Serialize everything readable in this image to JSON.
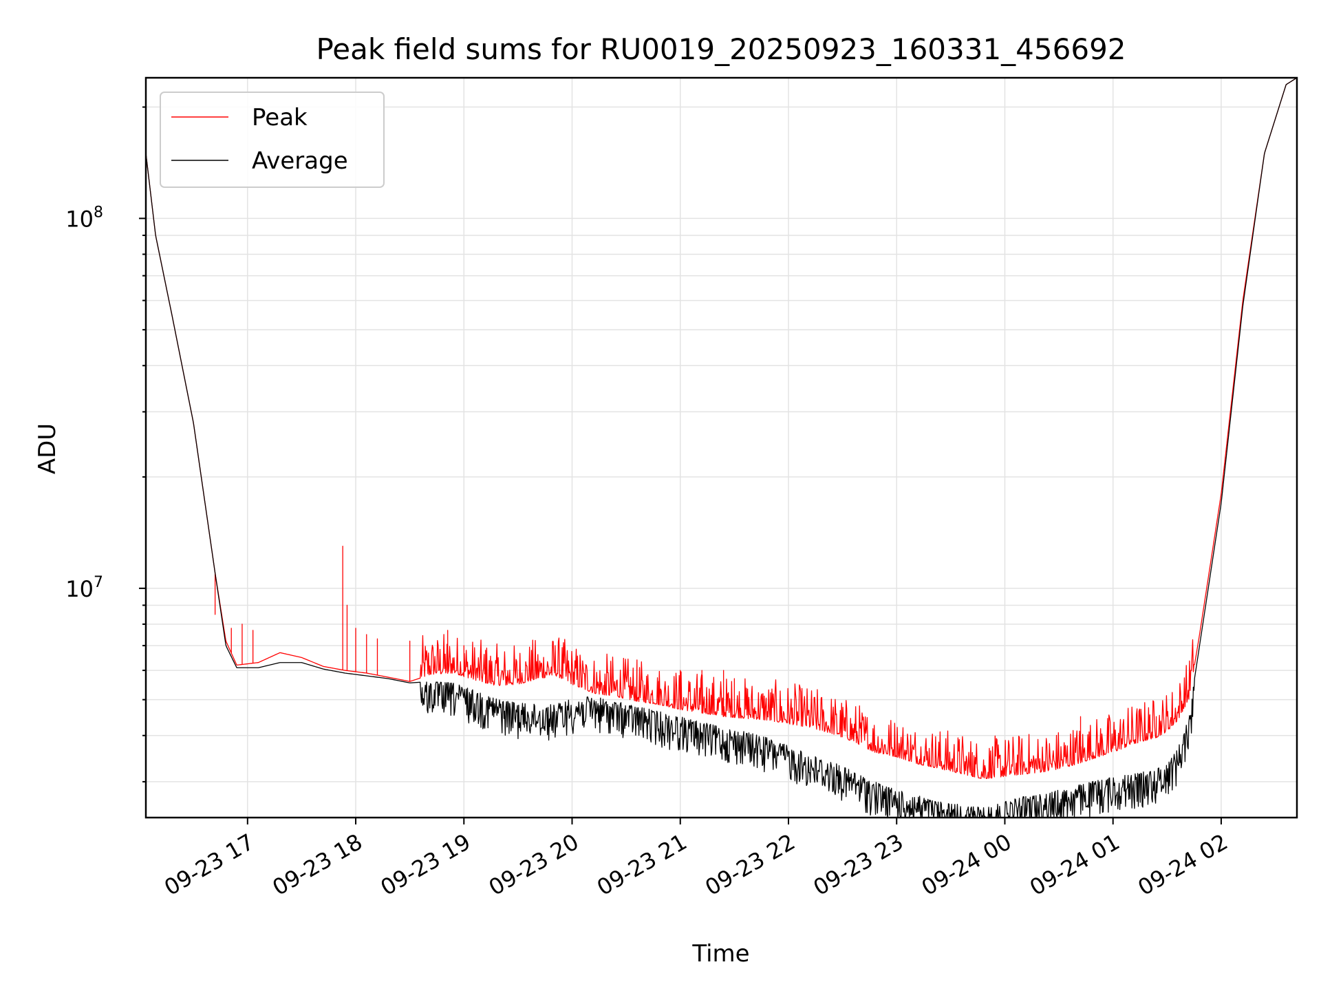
{
  "chart_data": {
    "type": "line",
    "title": "Peak field sums for RU0019_20250923_160331_456692",
    "xlabel": "Time",
    "ylabel": "ADU",
    "yscale": "log",
    "xlim_hours_since_2025_09_23_00": [
      16.06,
      26.7
    ],
    "ylim": [
      2400000,
      240000000
    ],
    "grid": true,
    "legend_position": "top-left",
    "x_tick_labels": [
      "09-23 17",
      "09-23 18",
      "09-23 19",
      "09-23 20",
      "09-23 21",
      "09-23 22",
      "09-23 23",
      "09-24 00",
      "09-24 01",
      "09-24 02"
    ],
    "x_tick_hours": [
      17,
      18,
      19,
      20,
      21,
      22,
      23,
      24,
      25,
      26
    ],
    "y_major_ticks": [
      {
        "value": 10000000,
        "base": "10",
        "exp": "7"
      },
      {
        "value": 100000000,
        "base": "10",
        "exp": "8"
      }
    ],
    "series": [
      {
        "name": "Peak",
        "color": "#ff0000",
        "anchors_x_hours": [
          16.06,
          16.15,
          16.3,
          16.5,
          16.7,
          16.8,
          16.9,
          17.1,
          17.3,
          17.5,
          17.7,
          17.9,
          18.1,
          18.3,
          18.5,
          18.7,
          18.9,
          19.1,
          19.3,
          19.5,
          19.7,
          19.85,
          20.0,
          20.2,
          20.4,
          20.6,
          20.8,
          21.0,
          21.2,
          21.4,
          21.6,
          21.8,
          22.0,
          22.2,
          22.4,
          22.6,
          22.8,
          23.0,
          23.2,
          23.4,
          23.6,
          23.8,
          24.0,
          24.2,
          24.4,
          24.6,
          24.8,
          25.0,
          25.2,
          25.4,
          25.5,
          25.6,
          25.7,
          25.8,
          26.0,
          26.2,
          26.4,
          26.6,
          26.7
        ],
        "anchors_values": [
          150000000,
          90000000,
          55000000,
          28000000,
          11000000,
          7200000,
          6200000,
          6300000,
          6700000,
          6500000,
          6150000,
          6000000,
          5900000,
          5750000,
          5600000,
          5850000,
          5900000,
          5650000,
          5450000,
          5500000,
          5700000,
          5800000,
          5500000,
          5200000,
          5100000,
          4950000,
          4850000,
          4700000,
          4600000,
          4500000,
          4450000,
          4400000,
          4300000,
          4200000,
          4050000,
          3850000,
          3600000,
          3500000,
          3350000,
          3250000,
          3150000,
          3050000,
          3100000,
          3150000,
          3200000,
          3300000,
          3450000,
          3600000,
          3800000,
          3950000,
          4100000,
          4400000,
          5000000,
          7500000,
          18000000,
          60000000,
          150000000,
          230000000,
          240000000
        ],
        "spikes": [
          {
            "x_hours": 16.7,
            "value": 8500000
          },
          {
            "x_hours": 16.85,
            "value": 7800000
          },
          {
            "x_hours": 16.95,
            "value": 8000000
          },
          {
            "x_hours": 17.05,
            "value": 7700000
          },
          {
            "x_hours": 17.88,
            "value": 13000000
          },
          {
            "x_hours": 17.92,
            "value": 9000000
          },
          {
            "x_hours": 18.0,
            "value": 7800000
          },
          {
            "x_hours": 18.1,
            "value": 7500000
          },
          {
            "x_hours": 18.2,
            "value": 7300000
          },
          {
            "x_hours": 18.5,
            "value": 7200000
          },
          {
            "x_hours": 18.85,
            "value": 7700000
          },
          {
            "x_hours": 19.0,
            "value": 7000000
          },
          {
            "x_hours": 19.2,
            "value": 6800000
          },
          {
            "x_hours": 20.3,
            "value": 5600000
          },
          {
            "x_hours": 20.6,
            "value": 5600000
          },
          {
            "x_hours": 20.8,
            "value": 5600000
          },
          {
            "x_hours": 21.0,
            "value": 6000000
          },
          {
            "x_hours": 21.2,
            "value": 6000000
          },
          {
            "x_hours": 21.4,
            "value": 6000000
          },
          {
            "x_hours": 21.5,
            "value": 5700000
          },
          {
            "x_hours": 23.7,
            "value": 3600000
          },
          {
            "x_hours": 24.7,
            "value": 4500000
          },
          {
            "x_hours": 25.4,
            "value": 4500000
          }
        ],
        "noise_band": {
          "x_start_hours": 18.6,
          "x_end_hours": 25.75,
          "max_upward_factor": 1.3
        }
      },
      {
        "name": "Average",
        "color": "#000000",
        "anchors_x_hours": [
          16.06,
          16.15,
          16.3,
          16.5,
          16.7,
          16.8,
          16.9,
          17.1,
          17.3,
          17.5,
          17.7,
          17.9,
          18.1,
          18.3,
          18.5,
          18.7,
          18.9,
          19.1,
          19.3,
          19.5,
          19.7,
          19.85,
          20.0,
          20.2,
          20.4,
          20.6,
          20.8,
          21.0,
          21.2,
          21.4,
          21.6,
          21.8,
          22.0,
          22.2,
          22.4,
          22.6,
          22.8,
          23.0,
          23.2,
          23.4,
          23.6,
          23.8,
          24.0,
          24.2,
          24.4,
          24.6,
          24.8,
          25.0,
          25.2,
          25.4,
          25.5,
          25.6,
          25.7,
          25.8,
          26.0,
          26.2,
          26.4,
          26.6,
          26.7
        ],
        "anchors_values": [
          150000000,
          90000000,
          55000000,
          28000000,
          11000000,
          7000000,
          6100000,
          6100000,
          6300000,
          6300000,
          6050000,
          5900000,
          5800000,
          5700000,
          5550000,
          5600000,
          5550000,
          5300000,
          5050000,
          4900000,
          4850000,
          4850000,
          5050000,
          5100000,
          4950000,
          4800000,
          4650000,
          4500000,
          4350000,
          4200000,
          4100000,
          3950000,
          3750000,
          3550000,
          3400000,
          3200000,
          3000000,
          2850000,
          2750000,
          2650000,
          2600000,
          2550000,
          2650000,
          2750000,
          2800000,
          2900000,
          3000000,
          3100000,
          3150000,
          3250000,
          3400000,
          3700000,
          4500000,
          7000000,
          17000000,
          58000000,
          150000000,
          230000000,
          240000000
        ],
        "noise_band": {
          "x_start_hours": 18.6,
          "x_end_hours": 25.75,
          "max_downward_factor": 0.8
        }
      }
    ]
  }
}
